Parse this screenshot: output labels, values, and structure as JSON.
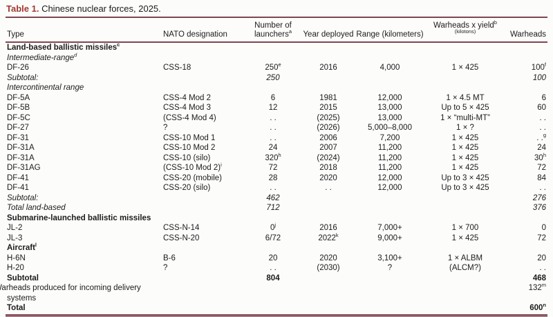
{
  "title": {
    "label": "Table 1.",
    "text": " Chinese nuclear forces, 2025."
  },
  "colors": {
    "caption_accent": "#a03a33",
    "rule": "#7e454e",
    "bottom_rule_light": "#a07b84"
  },
  "chart_data": {
    "type": "table",
    "title": "Table 1. Chinese nuclear forces, 2025.",
    "columns": [
      "Type",
      "NATO designation",
      "Number of launchers^a",
      "Year deployed",
      "Range (kilometers)",
      "Warheads x yield^b (kilotons)",
      "Warheads"
    ],
    "rows": [
      {
        "label": "Land-based ballistic missiles^c",
        "b": true,
        "indent": 0,
        "cells": [
          "",
          "",
          "",
          "",
          "",
          ""
        ]
      },
      {
        "label": "Intermediate-range^d",
        "i": true,
        "indent": 0,
        "cells": [
          "",
          "",
          "",
          "",
          "",
          ""
        ]
      },
      {
        "label": "DF-26",
        "indent": 1,
        "cells": [
          "CSS-18",
          "250^e",
          "2016",
          "4,000",
          "1 × 425",
          "100^f"
        ]
      },
      {
        "label": "Subtotal:",
        "i": true,
        "indent": 0,
        "cells": [
          "",
          "250",
          "",
          "",
          "",
          "100"
        ]
      },
      {
        "label": "Intercontinental range",
        "i": true,
        "indent": 0,
        "cells": [
          "",
          "",
          "",
          "",
          "",
          ""
        ]
      },
      {
        "label": "DF-5A",
        "indent": 1,
        "cells": [
          "CSS-4 Mod 2",
          "6",
          "1981",
          "12,000",
          "1 × 4.5 MT",
          "6"
        ]
      },
      {
        "label": "DF-5B",
        "indent": 1,
        "cells": [
          "CSS-4 Mod 3",
          "12",
          "2015",
          "13,000",
          "Up to 5 × 425",
          "60"
        ]
      },
      {
        "label": "DF-5C",
        "indent": 1,
        "cells": [
          "(CSS-4 Mod 4)",
          ". .",
          "(2025)",
          "13,000",
          "1 × “multi-MT”",
          ". ."
        ]
      },
      {
        "label": "DF-27",
        "indent": 1,
        "cells": [
          "?",
          ". .",
          "(2026)",
          "5,000–8,000",
          "1 × ?",
          ". ."
        ]
      },
      {
        "label": "DF-31",
        "indent": 1,
        "cells": [
          "CSS-10 Mod 1",
          ". .",
          "2006",
          "7,200",
          "1 × 425",
          ". .^g"
        ]
      },
      {
        "label": "DF-31A",
        "indent": 1,
        "cells": [
          "CSS-10 Mod 2",
          "24",
          "2007",
          "11,200",
          "1 × 425",
          "24"
        ]
      },
      {
        "label": "DF-31A",
        "indent": 1,
        "cells": [
          "CSS-10 (silo)",
          "320^h",
          "(2024)",
          "11,200",
          "1 × 425",
          "30^h"
        ]
      },
      {
        "label": "DF-31AG",
        "indent": 1,
        "cells": [
          "(CSS-10 Mod 2)^i",
          "72",
          "2018",
          "11,200",
          "1 × 425",
          "72"
        ]
      },
      {
        "label": "DF-41",
        "indent": 1,
        "cells": [
          "CSS-20 (mobile)",
          "28",
          "2020",
          "12,000",
          "Up to 3 × 425",
          "84"
        ]
      },
      {
        "label": "DF-41",
        "indent": 1,
        "cells": [
          "CSS-20 (silo)",
          ". .",
          ". .",
          "12,000",
          "Up to 3 × 425",
          ". ."
        ]
      },
      {
        "label": "Subtotal:",
        "i": true,
        "indent": 0,
        "cells": [
          "",
          "462",
          "",
          "",
          "",
          "276"
        ]
      },
      {
        "label": "Total land-based",
        "i": true,
        "indent": 0,
        "cells": [
          "",
          "712",
          "",
          "",
          "",
          "376"
        ]
      },
      {
        "label": "Submarine-launched ballistic missiles",
        "b": true,
        "indent": 0,
        "cells": [
          "",
          "",
          "",
          "",
          "",
          ""
        ]
      },
      {
        "label": "JL-2",
        "indent": 1,
        "cells": [
          "CSS-N-14",
          "0^j",
          "2016",
          "7,000+",
          "1 × 700",
          "0"
        ]
      },
      {
        "label": "JL-3",
        "indent": 1,
        "cells": [
          "CSS-N-20",
          "6/72",
          "2022^k",
          "9,000+",
          "1 × 425",
          "72"
        ]
      },
      {
        "label": "Aircraft^l",
        "b": true,
        "indent": 0,
        "cells": [
          "",
          "",
          "",
          "",
          "",
          ""
        ]
      },
      {
        "label": "H-6N",
        "indent": 1,
        "cells": [
          "B-6",
          "20",
          "2020",
          "3,100+",
          "1 × ALBM",
          "20"
        ]
      },
      {
        "label": "H-20",
        "indent": 1,
        "cells": [
          "?",
          ". .",
          "(2030)",
          "?",
          "(ALCM?)",
          ". ."
        ]
      },
      {
        "label": "Subtotal",
        "b": true,
        "indent": 0,
        "cells": [
          "",
          "804",
          "",
          "",
          "",
          "468"
        ]
      },
      {
        "label": "Warheads produced for incoming delivery systems",
        "hang": true,
        "indent": 0,
        "cells": [
          "",
          "",
          "",
          "",
          "",
          "132^m"
        ]
      },
      {
        "label": "Total",
        "b": true,
        "indent": 0,
        "cells": [
          "",
          "",
          "",
          "",
          "",
          "600^n"
        ]
      }
    ]
  }
}
